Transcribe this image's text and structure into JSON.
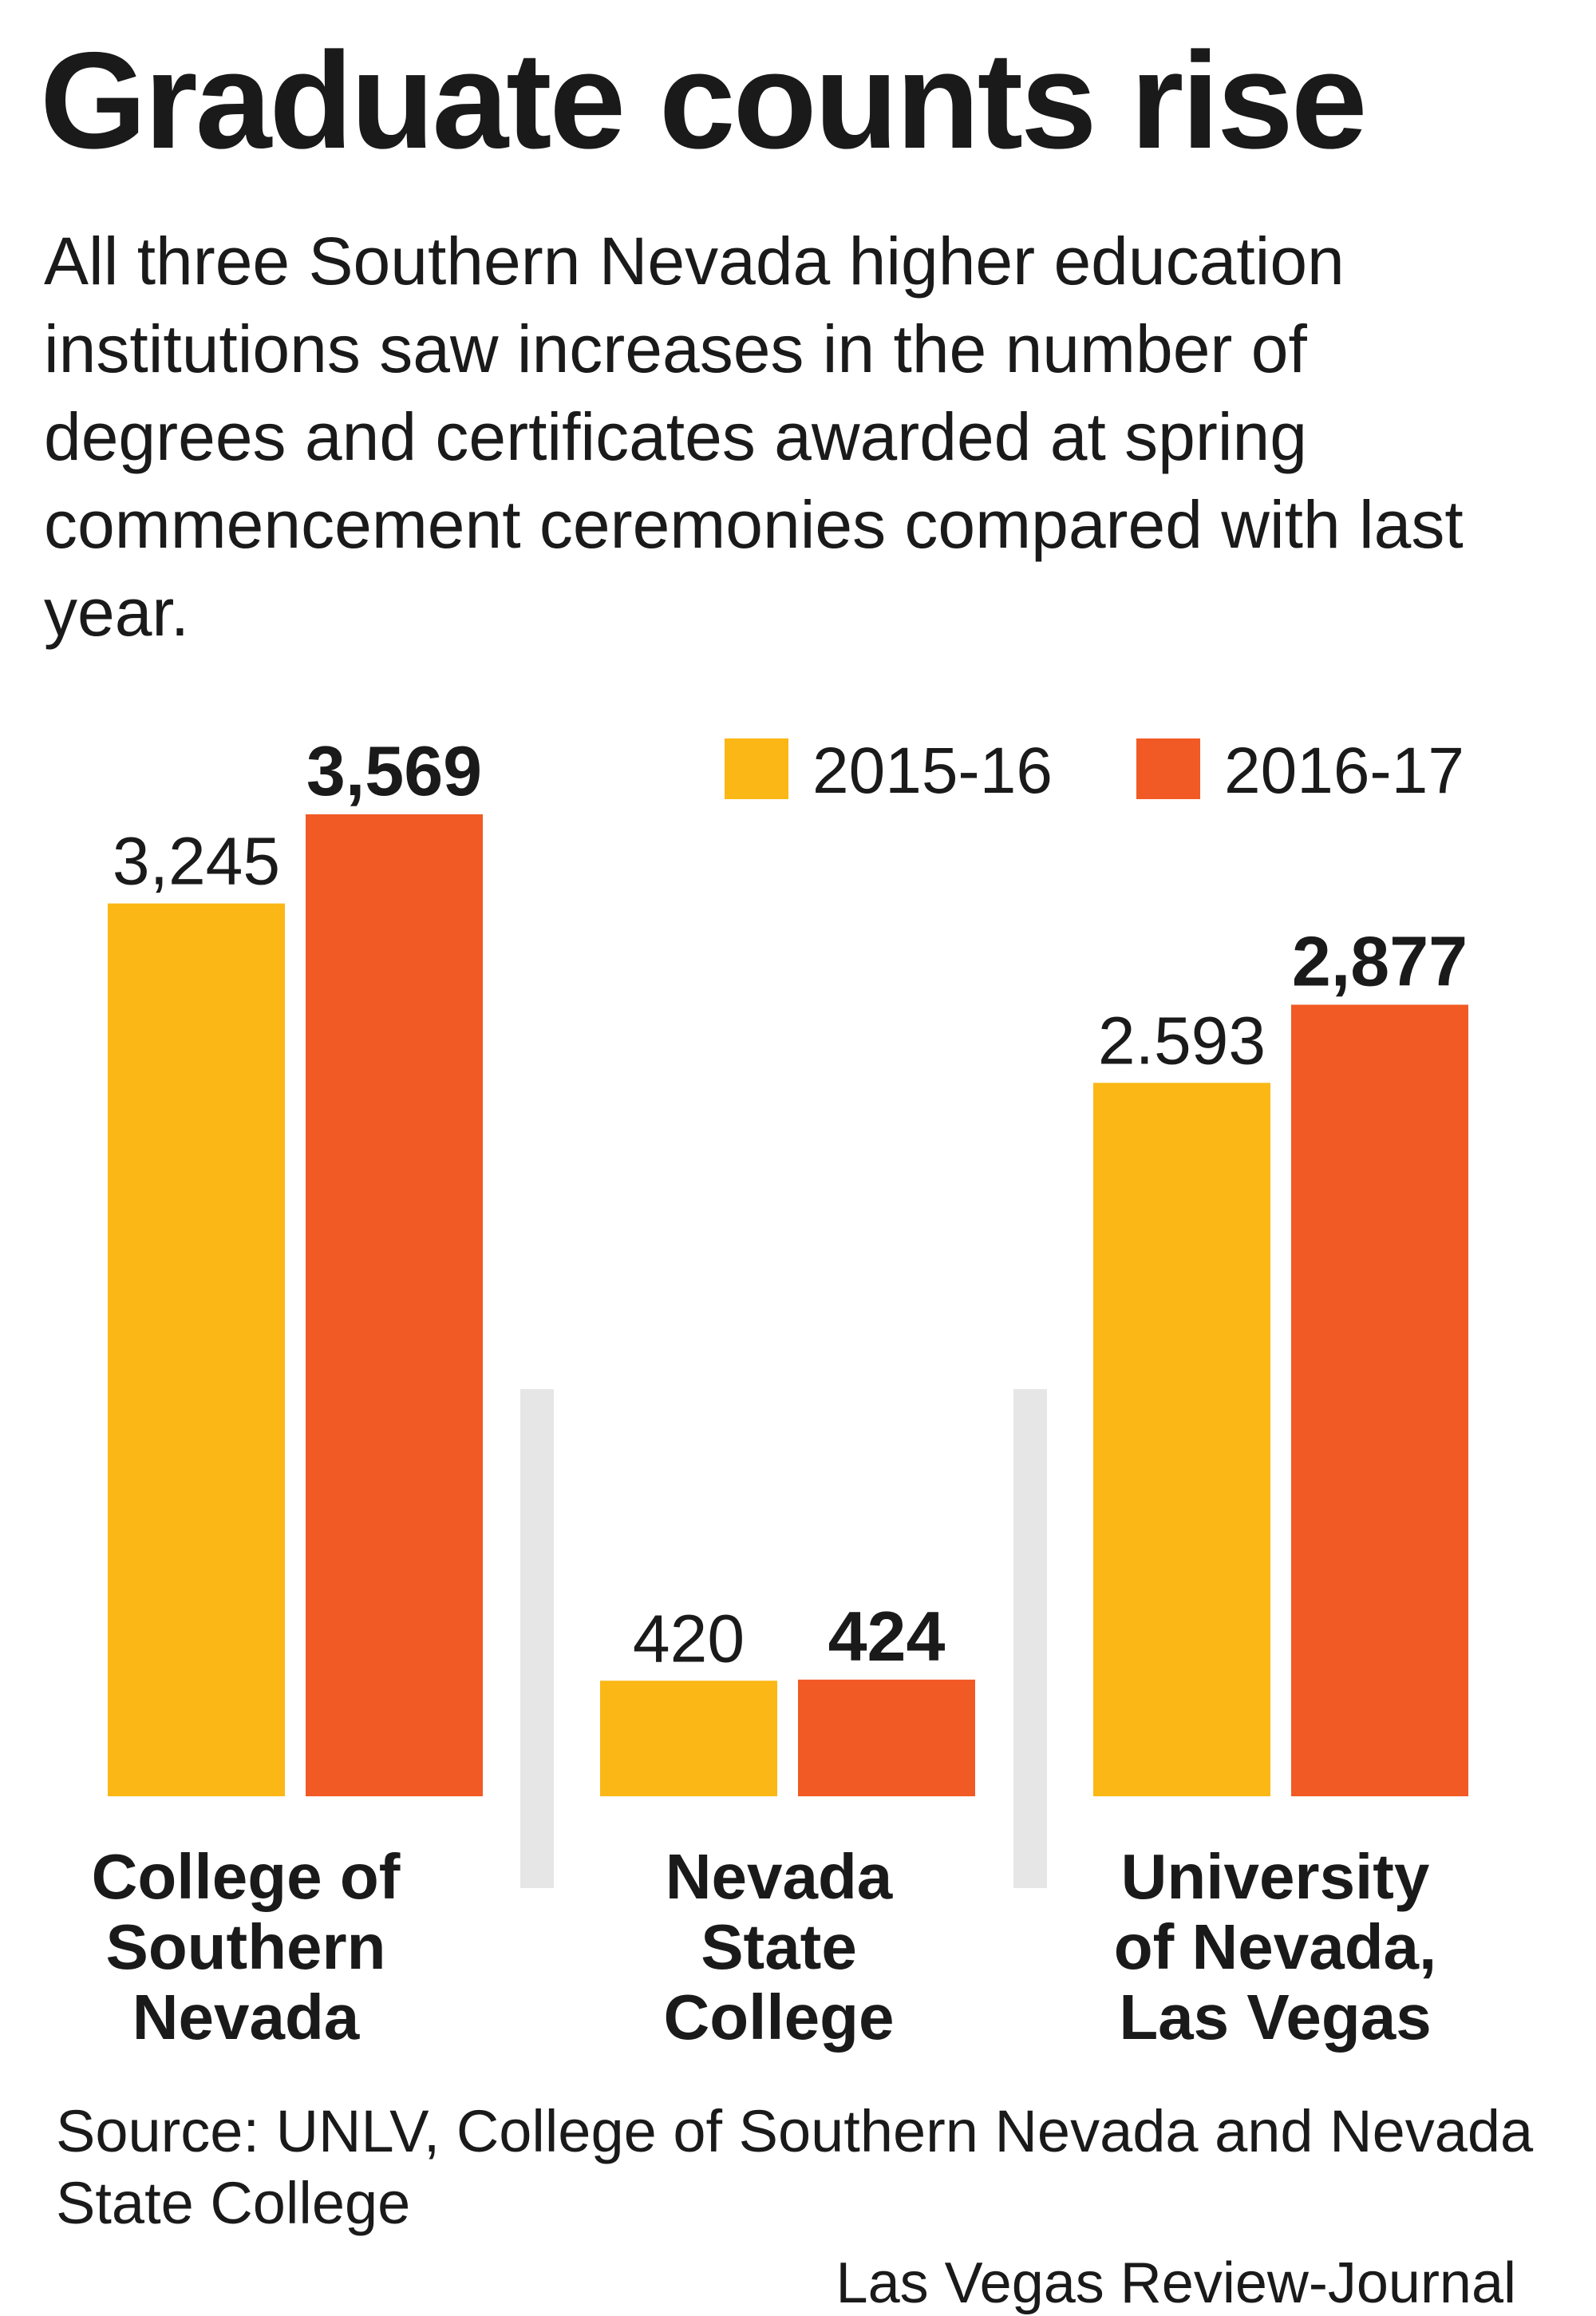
{
  "title": "Graduate counts rise",
  "subtitle": "All three Southern Nevada higher education institutions saw increases in the number of degrees and certificates awarded at spring commencement ceremonies compared with last year.",
  "source": "Source: UNLV, College of Southern Nevada and Nevada State College",
  "credit": "Las Vegas Review-Journal",
  "colors": {
    "series_2015_16": "#FBB715",
    "series_2016_17": "#F15A24",
    "divider": "#E6E6E6",
    "text": "#1a1a1a"
  },
  "chart_data": {
    "type": "bar",
    "categories": [
      [
        "College of",
        "Southern",
        "Nevada"
      ],
      [
        "Nevada",
        "State",
        "College"
      ],
      [
        "University",
        "of Nevada,",
        "Las Vegas"
      ]
    ],
    "series": [
      {
        "name": "2015-16",
        "values": [
          3245,
          420,
          2593
        ],
        "labels": [
          "3,245",
          "420",
          "2.593"
        ],
        "color": "#FBB715"
      },
      {
        "name": "2016-17",
        "values": [
          3569,
          424,
          2877
        ],
        "labels": [
          "3,569",
          "424",
          "2,877"
        ],
        "color": "#F15A24"
      }
    ],
    "legend_position": "top-right",
    "grid": false,
    "ylim": [
      0,
      3569
    ]
  }
}
